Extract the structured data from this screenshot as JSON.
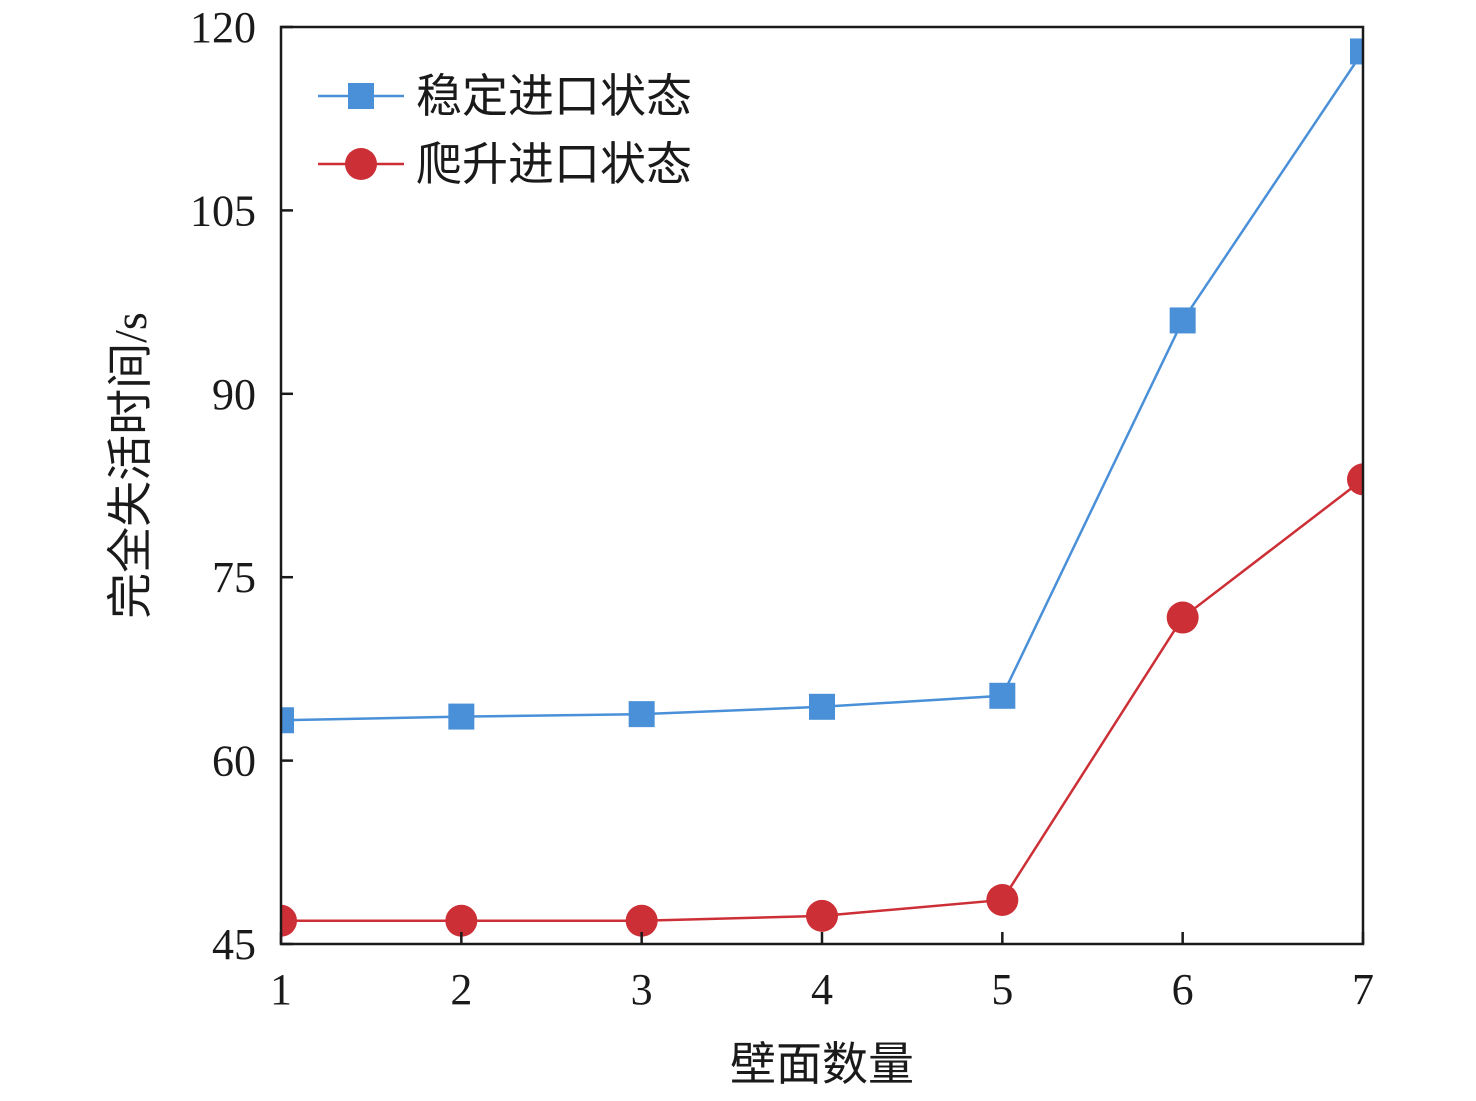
{
  "chart_data": {
    "type": "line",
    "xlabel": "壁面数量",
    "ylabel": "完全失活时间/s",
    "x": [
      1,
      2,
      3,
      4,
      5,
      6,
      7
    ],
    "xlim": [
      1,
      7
    ],
    "ylim": [
      45,
      120
    ],
    "yticks": [
      45,
      60,
      75,
      90,
      105,
      120
    ],
    "grid": false,
    "legend_position": "top-left",
    "series": [
      {
        "name": "稳定进口状态",
        "marker": "square",
        "color": "#4a90d9",
        "values": [
          63.3,
          63.6,
          63.8,
          64.4,
          65.3,
          96.0,
          118.0
        ]
      },
      {
        "name": "爬升进口状态",
        "marker": "circle",
        "color": "#cc2f36",
        "values": [
          46.9,
          46.9,
          46.9,
          47.3,
          48.6,
          71.7,
          83.0
        ]
      }
    ]
  }
}
